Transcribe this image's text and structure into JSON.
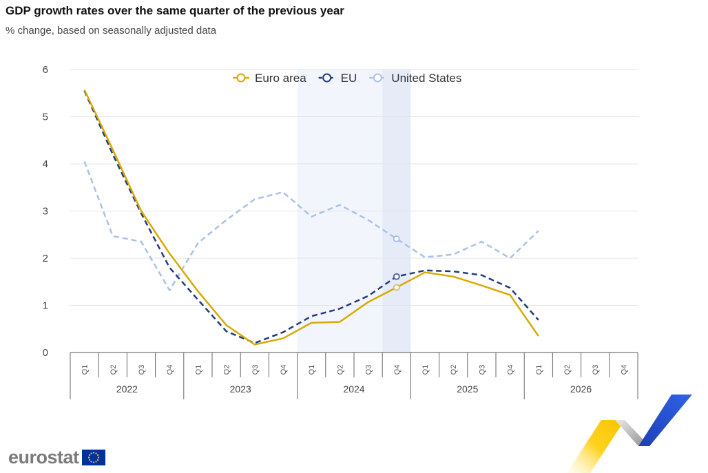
{
  "header": {
    "title": "GDP growth rates over the same quarter of the previous year",
    "subtitle": "% change, based on seasonally adjusted data"
  },
  "brand": {
    "name": "eurostat",
    "logo_color": "#7b7b7b",
    "flag_color": "#003399"
  },
  "chart_data": {
    "type": "line",
    "title": "GDP growth rates over the same quarter of the previous year",
    "subtitle": "% change, based on seasonally adjusted data",
    "ylim": [
      0,
      6
    ],
    "yticks": [
      0,
      1,
      2,
      3,
      4,
      5,
      6
    ],
    "grid": true,
    "legend_position": "top",
    "quarter_labels": [
      "Q1",
      "Q2",
      "Q3",
      "Q4",
      "Q1",
      "Q2",
      "Q3",
      "Q4",
      "Q1",
      "Q2",
      "Q3",
      "Q4",
      "Q1",
      "Q2",
      "Q3",
      "Q4",
      "Q1",
      "Q2",
      "Q3",
      "Q4"
    ],
    "years": [
      "2022",
      "2023",
      "2024",
      "2025",
      "2026"
    ],
    "highlight_bands": [
      {
        "from_index": 8,
        "to_index": 10,
        "color": "#f3f5fc"
      },
      {
        "from_index": 11,
        "to_index": 11,
        "color": "#e6ebf8"
      }
    ],
    "series": [
      {
        "name": "Euro area",
        "color": "#d8a900",
        "dash": "solid",
        "values": [
          5.57,
          4.3,
          3.0,
          2.1,
          1.3,
          0.58,
          0.17,
          0.3,
          0.63,
          0.65,
          1.07,
          1.38,
          1.7,
          1.61,
          1.42,
          1.22,
          0.35,
          null,
          null,
          null
        ],
        "highlighted_index": 11,
        "highlight_color": "#d5c17a"
      },
      {
        "name": "EU",
        "color": "#1f3b7e",
        "dash": "dashed",
        "values": [
          5.55,
          4.2,
          2.95,
          1.8,
          1.12,
          0.45,
          0.2,
          0.43,
          0.77,
          0.93,
          1.2,
          1.61,
          1.74,
          1.72,
          1.64,
          1.37,
          0.69,
          null,
          null,
          null
        ],
        "highlighted_index": 11,
        "highlight_color": "#5868a8"
      },
      {
        "name": "United States",
        "color": "#a9c1ea",
        "dash": "dashed",
        "values": [
          4.05,
          2.47,
          2.35,
          1.32,
          2.32,
          2.81,
          3.25,
          3.4,
          2.88,
          3.13,
          2.81,
          2.41,
          2.02,
          2.08,
          2.35,
          2.0,
          2.58,
          null,
          null,
          null
        ],
        "highlighted_index": 11,
        "highlight_color": "#a9c1ea"
      }
    ]
  }
}
